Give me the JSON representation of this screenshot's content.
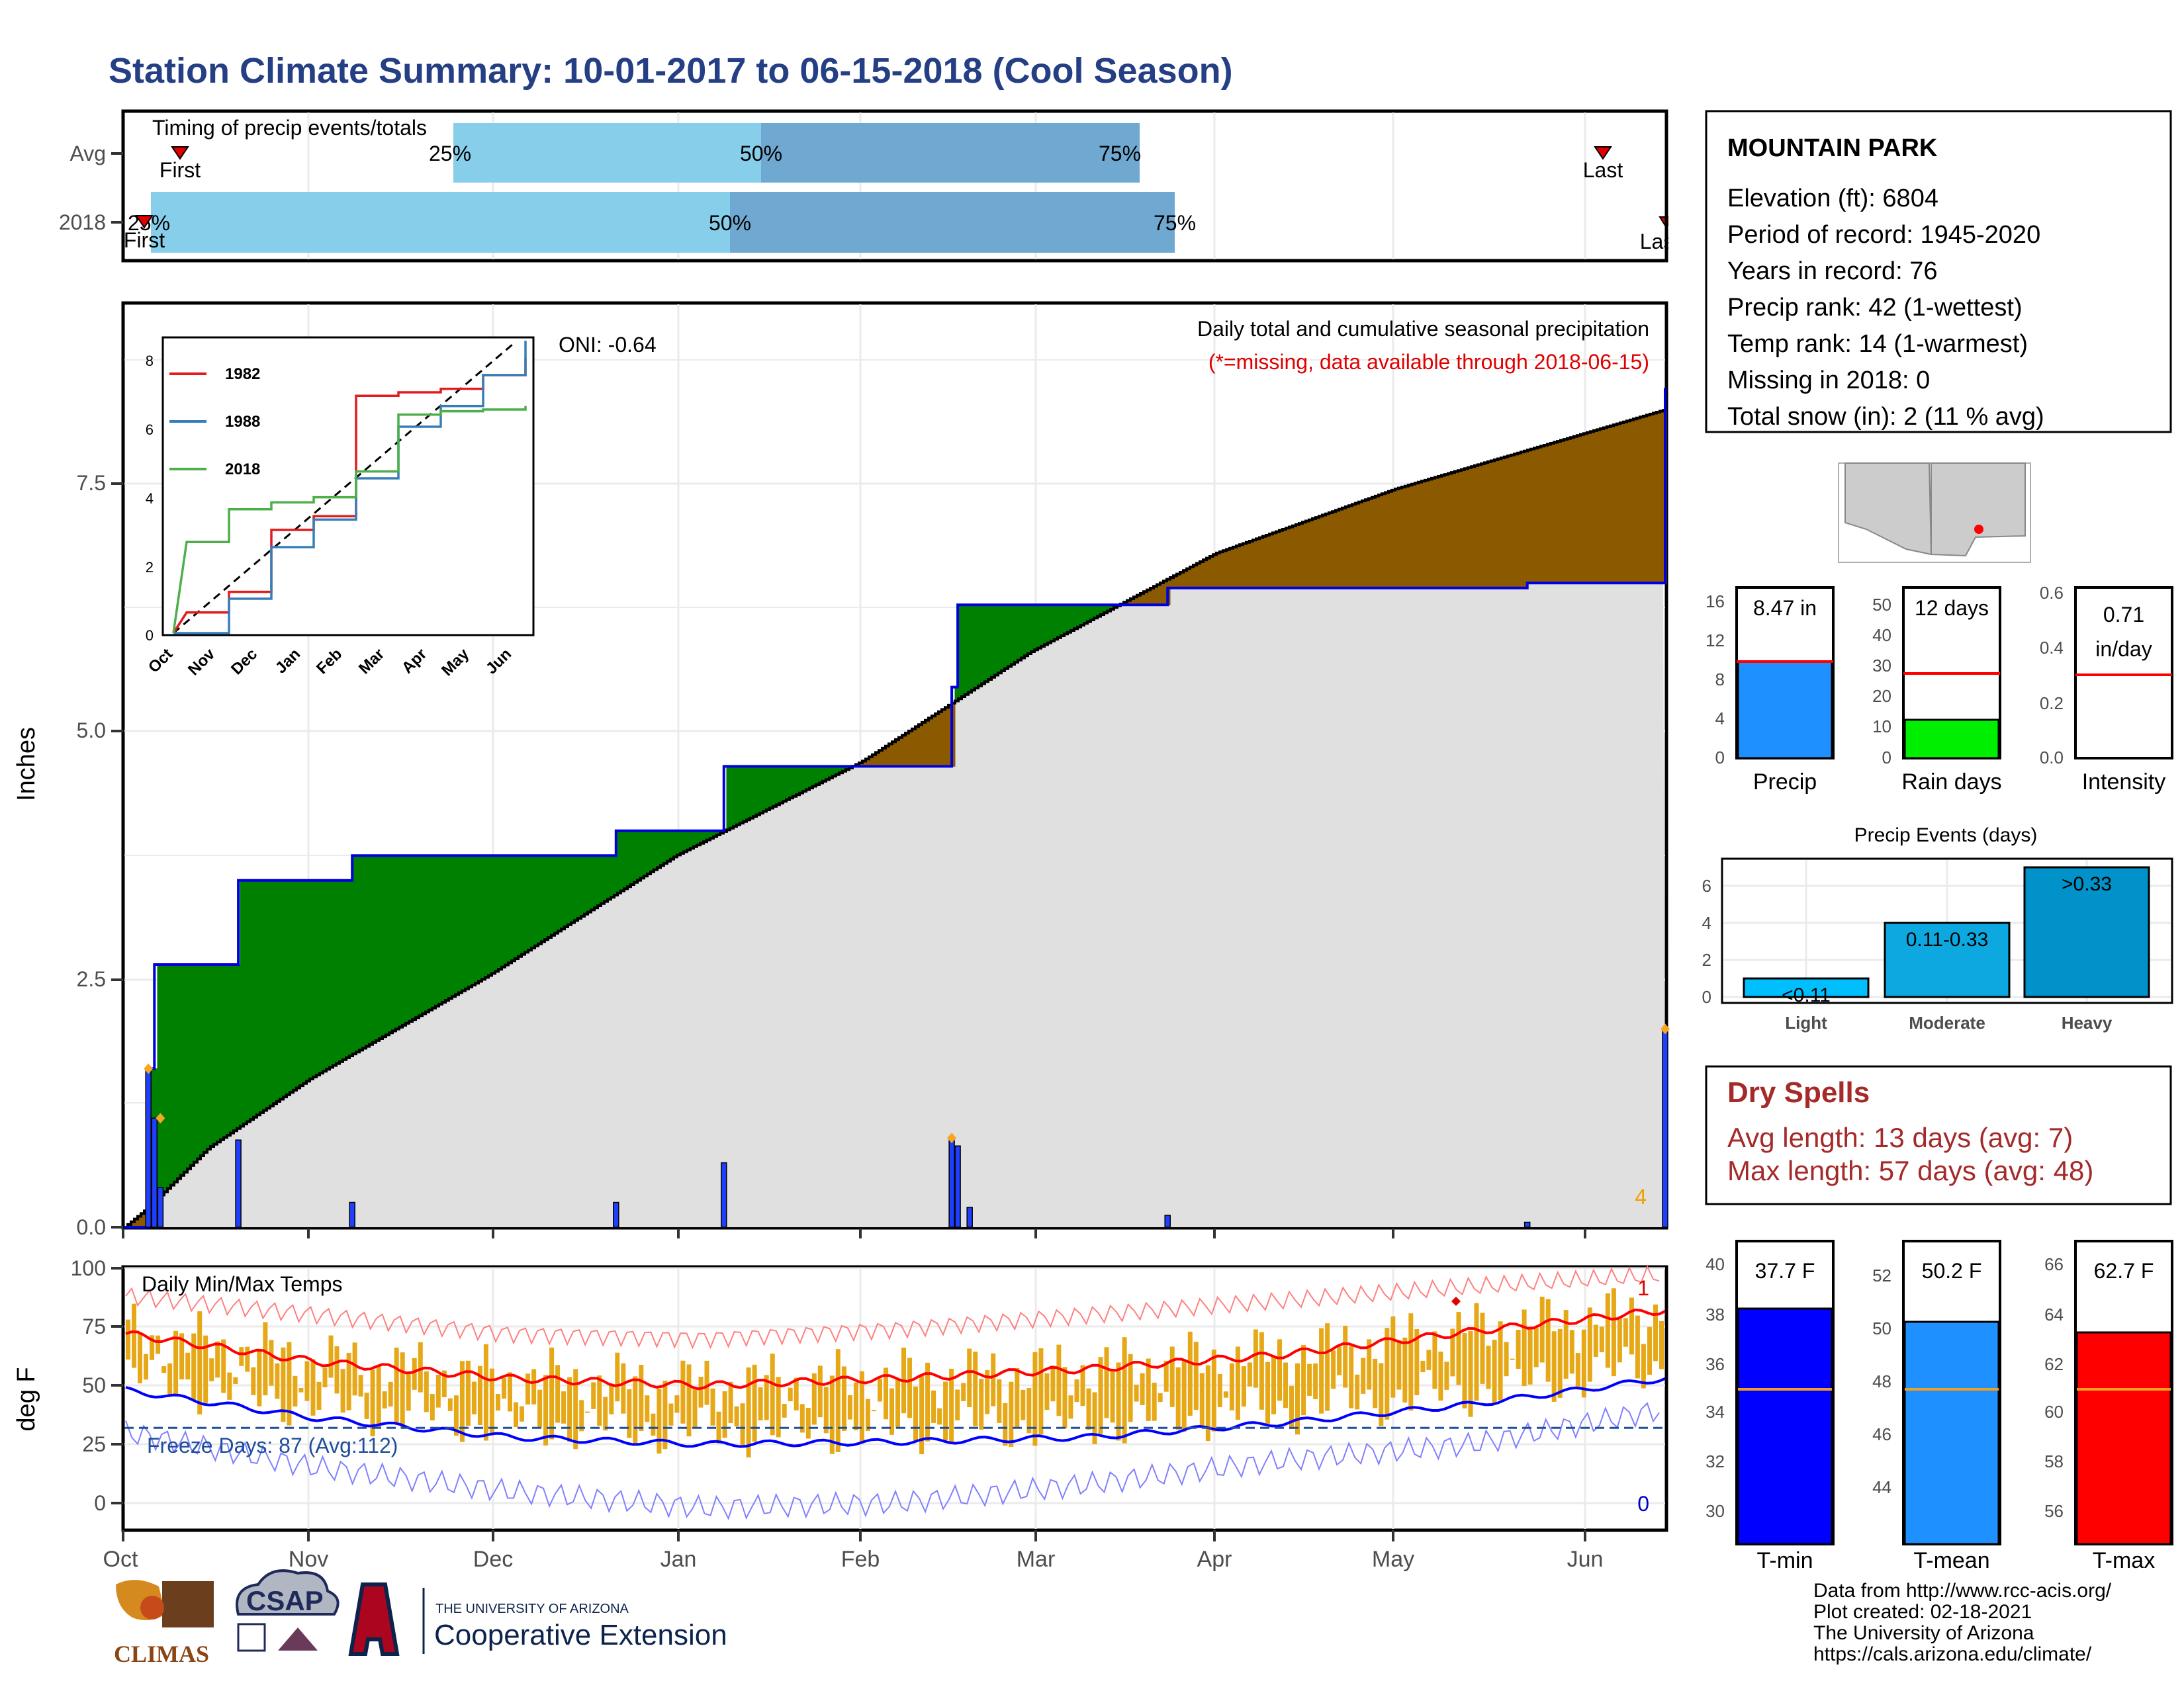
{
  "page": {
    "title": "Station Climate Summary: 10-01-2017 to 06-15-2018 (Cool Season)"
  },
  "timing": {
    "label": "Timing of precip events/totals",
    "rows": [
      "Avg",
      "2018"
    ],
    "avg": {
      "q25_label": "25%",
      "q50_label": "50%",
      "q75_label": "75%",
      "first_label": "First",
      "last_label": "Last"
    },
    "y2018": {
      "q25_label": "25%",
      "q50_label": "50%",
      "q75_label": "75%",
      "first_label": "First",
      "last_label": "Last"
    }
  },
  "station": {
    "name": "MOUNTAIN PARK",
    "lines": [
      "Elevation (ft): 6804",
      "Period of record: 1945-2020",
      "Years in record: 76",
      "Precip rank: 42 (1-wettest)",
      "Temp rank: 14 (1-warmest)",
      "Missing in 2018: 0",
      "Total snow (in): 2 (11 % avg)"
    ]
  },
  "precip_panel": {
    "ylabel": "Inches",
    "y_ticks": [
      "0.0",
      "2.5",
      "5.0",
      "7.5"
    ],
    "caption": "Daily total and cumulative seasonal precipitation",
    "missing_note": "(*=missing, data available through 2018-06-15)",
    "oni": "ONI: -0.64",
    "corner_count": "4"
  },
  "inset": {
    "y_ticks": [
      "0",
      "2",
      "4",
      "6",
      "8"
    ],
    "x_ticks": [
      "Oct",
      "Nov",
      "Dec",
      "Jan",
      "Feb",
      "Mar",
      "Apr",
      "May",
      "Jun"
    ],
    "legend": [
      {
        "name": "1982",
        "color": "#e41a1c"
      },
      {
        "name": "1988",
        "color": "#377eb8"
      },
      {
        "name": "2018",
        "color": "#4daf4a"
      }
    ]
  },
  "temp_panel": {
    "ylabel": "deg F",
    "label": "Daily Min/Max Temps",
    "y_ticks": [
      "0",
      "25",
      "50",
      "75",
      "100"
    ],
    "freeze_label": "Freeze Days: 87 (Avg:112)",
    "record_high_count": "1",
    "record_low_count": "0"
  },
  "months": [
    "Oct",
    "Nov",
    "Dec",
    "Jan",
    "Feb",
    "Mar",
    "Apr",
    "May",
    "Jun"
  ],
  "mini_bars": {
    "precip": {
      "value_label": "8.47 in",
      "label": "Precip",
      "ticks": [
        "0",
        "4",
        "8",
        "12",
        "16"
      ]
    },
    "rain_days": {
      "value_label": "12 days",
      "label": "Rain days",
      "ticks": [
        "0",
        "10",
        "20",
        "30",
        "40",
        "50"
      ]
    },
    "intensity": {
      "value_label": "0.71",
      "unit_label": "in/day",
      "label": "Intensity",
      "ticks": [
        "0.0",
        "0.2",
        "0.4",
        "0.6"
      ]
    }
  },
  "events": {
    "title": "Precip Events (days)",
    "ticks": [
      "0",
      "2",
      "4",
      "6"
    ],
    "categories": [
      "Light",
      "Moderate",
      "Heavy"
    ],
    "bar_labels": [
      "<0.11",
      "0.11-0.33",
      ">0.33"
    ]
  },
  "dry_spells": {
    "title": "Dry Spells",
    "avg_line": "Avg length: 13 days (avg: 7)",
    "max_line": "Max length: 57 days (avg: 48)"
  },
  "temp_bars": {
    "tmin": {
      "value_label": "37.7 F",
      "label": "T-min",
      "ticks": [
        "30",
        "32",
        "34",
        "36",
        "38",
        "40"
      ]
    },
    "tmean": {
      "value_label": "50.2 F",
      "label": "T-mean",
      "ticks": [
        "44",
        "46",
        "48",
        "50",
        "52"
      ]
    },
    "tmax": {
      "value_label": "62.7 F",
      "label": "T-max",
      "ticks": [
        "56",
        "58",
        "60",
        "62",
        "64",
        "66"
      ]
    }
  },
  "logos": {
    "climas": "CLIMAS",
    "csap": "CSAP",
    "ua_small": "THE UNIVERSITY OF ARIZONA",
    "ua_big": "Cooperative Extension"
  },
  "footer": [
    "Data from http://www.rcc-acis.org/",
    "Plot created: 02-18-2021",
    "The University of Arizona",
    "https://cals.arizona.edu/climate/"
  ],
  "colors": {
    "title": "#253f85",
    "surplus": "#008000",
    "deficit": "#8b5a00",
    "avg_fill": "#e0e0e0",
    "daily_bar": "#1f3fff",
    "tmin": "#0000ff",
    "tmean": "#1e90ff",
    "tmax": "#ff0000",
    "temp_range": "#e6a817",
    "light_blue": "#87ceeb",
    "mid_blue": "#6fa8d0"
  },
  "chart_data": [
    {
      "type": "area",
      "title": "Daily total and cumulative seasonal precipitation",
      "ylabel": "Inches",
      "ylim": [
        0,
        9.3
      ],
      "grid": true,
      "series": [
        {
          "name": "2018",
          "x": [
            "2017-10-01",
            "2017-10-05",
            "2017-10-06",
            "2017-10-20",
            "2017-11-08",
            "2017-12-22",
            "2018-01-09",
            "2018-02-16",
            "2018-02-17",
            "2018-03-24",
            "2018-05-23",
            "2018-06-14",
            "2018-06-15"
          ],
          "values": [
            0.0,
            1.6,
            2.65,
            3.5,
            3.75,
            4.0,
            4.65,
            5.45,
            6.28,
            6.45,
            6.5,
            6.5,
            8.47
          ]
        },
        {
          "x": [
            "2017-10-01",
            "2017-10-05",
            "2017-10-15",
            "2017-11-01",
            "2017-12-01",
            "2018-01-01",
            "2018-02-01",
            "2018-03-01",
            "2018-04-01",
            "2018-05-01",
            "2018-06-15"
          ],
          "values": [
            0.0,
            0.2,
            0.8,
            1.5,
            2.55,
            3.75,
            4.7,
            5.8,
            6.8,
            7.45,
            8.25
          ]
        }
      ],
      "daily_bars": {
        "x": [
          "2017-10-05",
          "2017-10-06",
          "2017-10-07",
          "2017-10-20",
          "2017-11-08",
          "2017-12-22",
          "2018-01-09",
          "2018-02-16",
          "2018-02-17",
          "2018-02-19",
          "2018-03-24",
          "2018-05-23",
          "2018-06-15"
        ],
        "values": [
          1.6,
          1.1,
          0.4,
          0.88,
          0.25,
          0.25,
          0.65,
          0.9,
          0.82,
          0.2,
          0.12,
          0.05,
          2.0
        ]
      }
    },
    {
      "type": "line",
      "ylim": [
        0,
        9
      ],
      "categories": [
        "Oct",
        "Nov",
        "Dec",
        "Jan",
        "Feb",
        "Mar",
        "Apr",
        "May",
        "Jun"
      ],
      "series": [
        {
          "name": "1982",
          "values": [
            0.6,
            1.2,
            3.0,
            3.4,
            6.9,
            7.0,
            7.1,
            7.5,
            8.0
          ]
        },
        {
          "name": "1988",
          "values": [
            0.0,
            1.0,
            2.5,
            3.3,
            4.5,
            6.0,
            6.6,
            7.5,
            8.5
          ]
        },
        {
          "name": "2018",
          "values": [
            2.65,
            3.6,
            3.8,
            3.95,
            4.7,
            6.35,
            6.45,
            6.5,
            6.6
          ]
        }
      ]
    },
    {
      "type": "line",
      "title": "Daily Min/Max Temps",
      "ylabel": "deg F",
      "ylim": [
        -8,
        103
      ],
      "categories": [
        "Oct",
        "Nov",
        "Dec",
        "Jan",
        "Feb",
        "Mar",
        "Apr",
        "May",
        "Jun"
      ],
      "series": [
        {
          "name": "Avg max",
          "values": [
            72,
            60,
            53,
            50,
            53,
            57,
            63,
            73,
            82
          ]
        },
        {
          "name": "Avg min",
          "values": [
            48,
            36,
            28,
            25,
            26,
            28,
            34,
            42,
            53
          ]
        },
        {
          "name": "Record max",
          "values": [
            88,
            80,
            72,
            70,
            74,
            80,
            86,
            92,
            97
          ]
        },
        {
          "name": "Record min",
          "values": [
            30,
            15,
            5,
            -2,
            0,
            8,
            18,
            25,
            40
          ]
        }
      ],
      "freeze_threshold": 32
    },
    {
      "type": "bar",
      "categories": [
        "Precip",
        "Rain days",
        "Intensity"
      ],
      "values": [
        8.47,
        12,
        0.71
      ],
      "averages": [
        8.6,
        27.5,
        0.31
      ]
    },
    {
      "type": "bar",
      "title": "Precip Events (days)",
      "categories": [
        "Light",
        "Moderate",
        "Heavy"
      ],
      "values": [
        1,
        4,
        7
      ],
      "ylim": [
        0,
        7
      ]
    },
    {
      "type": "bar",
      "categories": [
        "T-min",
        "T-mean",
        "T-max"
      ],
      "values": [
        37.7,
        50.2,
        62.7
      ],
      "averages": [
        34.6,
        47.6,
        60.6
      ]
    }
  ]
}
